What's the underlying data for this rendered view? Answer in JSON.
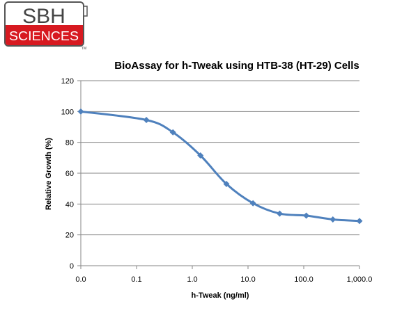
{
  "logo": {
    "top_text": "SBH",
    "bottom_text": "SCIENCES",
    "trademark": "TM",
    "red": "#d71920",
    "frame": "#555555"
  },
  "chart_data": {
    "type": "line",
    "title": "BioAssay for h-Tweak using HTB-38 (HT-29) Cells",
    "xlabel": "h-Tweak (ng/ml)",
    "ylabel": "Relative Growth (%)",
    "x_scale": "log",
    "x_tick_labels": [
      "0.0",
      "0.1",
      "1.0",
      "10.0",
      "100.0",
      "1,000.0"
    ],
    "x_tick_values": [
      0.01,
      0.1,
      1,
      10,
      100,
      1000
    ],
    "ylim": [
      0,
      120
    ],
    "y_ticks": [
      0,
      20,
      40,
      60,
      80,
      100,
      120
    ],
    "grid": "horizontal",
    "series": [
      {
        "color": "#4f81bd",
        "marker": "diamond",
        "x": [
          0.01,
          0.15,
          0.45,
          1.4,
          4.1,
          12.3,
          37,
          111,
          333,
          1000
        ],
        "y": [
          100,
          94.5,
          86.5,
          71.5,
          53,
          40.5,
          33.8,
          32.5,
          30,
          29
        ]
      }
    ]
  }
}
